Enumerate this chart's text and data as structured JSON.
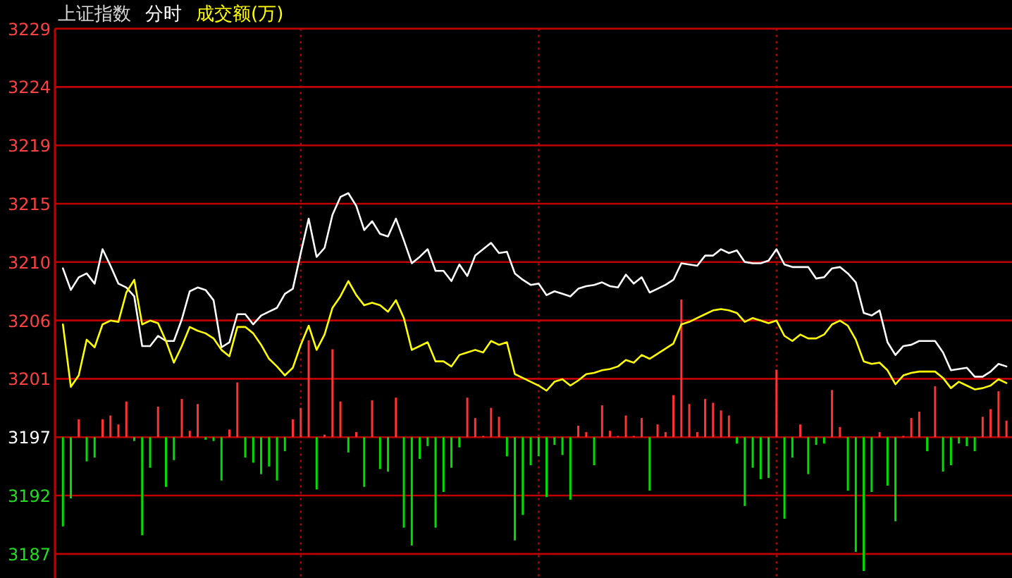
{
  "chart_data": {
    "type": "line",
    "title": "上证指数",
    "subtitle": "分时",
    "grid": true,
    "tick_labels": "y",
    "categories": [
      null,
      null,
      null,
      null,
      null,
      null,
      null,
      null,
      null,
      null,
      null,
      null,
      null,
      null,
      null,
      null,
      null,
      null,
      null,
      null,
      null,
      null,
      null,
      null,
      null,
      null,
      null,
      null,
      null,
      null,
      null,
      null,
      null,
      null,
      null,
      null,
      null,
      null,
      null,
      null,
      null,
      null,
      null,
      null,
      null,
      null,
      null,
      null,
      null,
      null,
      null,
      null,
      null,
      null,
      null,
      null,
      null,
      null,
      null,
      null,
      null,
      null,
      null,
      null,
      null,
      null,
      null,
      null,
      null,
      null,
      null,
      null,
      null,
      null,
      null,
      null,
      null,
      null,
      null,
      null,
      null,
      null,
      null,
      null,
      null,
      null,
      null,
      null,
      null,
      null,
      null,
      null,
      null,
      null,
      null,
      null,
      null,
      null,
      null,
      null,
      null,
      null,
      null,
      null,
      null,
      null,
      null,
      null,
      null,
      null,
      null,
      null,
      null,
      null,
      null,
      null,
      null,
      null,
      null,
      null
    ],
    "ylim": [
      3185.5,
      3228.61
    ],
    "yticks": [
      {
        "value": 3187.39,
        "label": "3187"
      },
      {
        "value": 3191.97,
        "label": "3192"
      },
      {
        "value": 3196.55,
        "label": "3197"
      },
      {
        "value": 3201.13,
        "label": "3201"
      },
      {
        "value": 3205.71,
        "label": "3206"
      },
      {
        "value": 3210.29,
        "label": "3210"
      },
      {
        "value": 3214.87,
        "label": "3215"
      },
      {
        "value": 3219.45,
        "label": "3219"
      },
      {
        "value": 3224.03,
        "label": "3224"
      },
      {
        "value": 3228.61,
        "label": "3229"
      }
    ],
    "series": [
      {
        "type": "bar",
        "values": [
          -7.0,
          -4.8,
          1.4,
          -1.9,
          -1.6,
          1.4,
          1.7,
          1.0,
          2.8,
          -0.3,
          -7.7,
          -2.4,
          2.4,
          -3.9,
          -1.8,
          3.0,
          0.5,
          2.6,
          -0.2,
          -0.3,
          -3.4,
          0.6,
          4.3,
          -1.6,
          -2.0,
          -2.9,
          -2.3,
          -3.4,
          -1.1,
          1.4,
          2.3,
          7.6,
          -4.1,
          0.2,
          6.9,
          2.8,
          -1.2,
          0.4,
          -3.9,
          2.9,
          -2.5,
          -2.7,
          3.1,
          -7.1,
          -8.5,
          -1.7,
          -0.7,
          -7.1,
          -4.3,
          -2.4,
          -0.8,
          3.1,
          1.5,
          0.1,
          2.3,
          1.6,
          -1.5,
          -8.1,
          -6.1,
          -2.2,
          -1.5,
          -4.7,
          -0.6,
          -1.4,
          -4.9,
          0.9,
          0.4,
          -2.2,
          2.5,
          0.5,
          0.1,
          1.7,
          0.1,
          1.5,
          -4.2,
          1.0,
          0.4,
          3.3,
          10.8,
          2.6,
          0.4,
          3.0,
          2.7,
          2.1,
          1.7,
          -0.5,
          -5.4,
          -2.4,
          -3.3,
          -3.2,
          5.3,
          -6.4,
          -1.6,
          1.0,
          -2.9,
          -0.6,
          -0.5,
          3.7,
          0.8,
          -4.2,
          -9.0,
          -10.5,
          -4.3,
          0.4,
          -3.8,
          -6.6,
          0.1,
          1.5,
          2.0,
          -1.1,
          4.0,
          -2.7,
          -2.2,
          -0.5,
          -0.7,
          -1.1,
          1.6,
          2.2,
          3.6,
          1.3
        ],
        "base": [
          3196.55,
          3196.55,
          3196.55,
          3196.55,
          3196.55,
          3196.55,
          3196.55,
          3196.55,
          3196.55,
          3196.55,
          3196.55,
          3196.55,
          3196.55,
          3196.55,
          3196.55,
          3196.55,
          3196.55,
          3196.55,
          3196.55,
          3196.55,
          3196.55,
          3196.55,
          3196.55,
          3196.55,
          3196.55,
          3196.55,
          3196.55,
          3196.55,
          3196.55,
          3196.55,
          3196.55,
          3196.55,
          3196.55,
          3196.55,
          3196.55,
          3196.55,
          3196.55,
          3196.55,
          3196.55,
          3196.55,
          3196.55,
          3196.55,
          3196.55,
          3196.55,
          3196.55,
          3196.55,
          3196.55,
          3196.55,
          3196.55,
          3196.55,
          3196.55,
          3196.55,
          3196.55,
          3196.55,
          3196.55,
          3196.55,
          3196.55,
          3196.55,
          3196.55,
          3196.55,
          3196.55,
          3196.55,
          3196.55,
          3196.55,
          3196.55,
          3196.55,
          3196.55,
          3196.55,
          3196.55,
          3196.55,
          3196.55,
          3196.55,
          3196.55,
          3196.55,
          3196.55,
          3196.55,
          3196.55,
          3196.55,
          3196.55,
          3196.55,
          3196.55,
          3196.55,
          3196.55,
          3196.55,
          3196.55,
          3196.55,
          3196.55,
          3196.55,
          3196.55,
          3196.55,
          3196.55,
          3196.55,
          3196.55,
          3196.55,
          3196.55,
          3196.55,
          3196.55,
          3196.55,
          3196.55,
          3196.55,
          3196.55,
          3196.55,
          3196.55,
          3196.55,
          3196.55,
          3196.55,
          3196.55,
          3196.55,
          3196.55,
          3196.55,
          3196.55,
          3196.55,
          3196.55,
          3196.55,
          3196.55,
          3196.55,
          3196.55,
          3196.55,
          3196.55,
          3196.55
        ],
        "colors": [
          "#00dd00",
          "#00dd00",
          "#ff3333",
          "#00dd00",
          "#00dd00",
          "#ff3333",
          "#ff3333",
          "#ff3333",
          "#ff3333",
          "#00dd00",
          "#00dd00",
          "#00dd00",
          "#ff3333",
          "#00dd00",
          "#00dd00",
          "#ff3333",
          "#ff3333",
          "#ff3333",
          "#00dd00",
          "#00dd00",
          "#00dd00",
          "#ff3333",
          "#ff3333",
          "#00dd00",
          "#00dd00",
          "#00dd00",
          "#00dd00",
          "#00dd00",
          "#00dd00",
          "#ff3333",
          "#ff3333",
          "#ff3333",
          "#00dd00",
          "#ff3333",
          "#ff3333",
          "#ff3333",
          "#00dd00",
          "#ff3333",
          "#00dd00",
          "#ff3333",
          "#00dd00",
          "#00dd00",
          "#ff3333",
          "#00dd00",
          "#00dd00",
          "#00dd00",
          "#00dd00",
          "#00dd00",
          "#00dd00",
          "#00dd00",
          "#00dd00",
          "#ff3333",
          "#ff3333",
          "#ff3333",
          "#ff3333",
          "#ff3333",
          "#00dd00",
          "#00dd00",
          "#00dd00",
          "#00dd00",
          "#00dd00",
          "#00dd00",
          "#00dd00",
          "#00dd00",
          "#00dd00",
          "#ff3333",
          "#ff3333",
          "#00dd00",
          "#ff3333",
          "#ff3333",
          "#ff3333",
          "#ff3333",
          "#ff3333",
          "#ff3333",
          "#00dd00",
          "#ff3333",
          "#ff3333",
          "#ff3333",
          "#ff3333",
          "#ff3333",
          "#ff3333",
          "#ff3333",
          "#ff3333",
          "#ff3333",
          "#ff3333",
          "#00dd00",
          "#00dd00",
          "#00dd00",
          "#00dd00",
          "#00dd00",
          "#ff3333",
          "#00dd00",
          "#00dd00",
          "#ff3333",
          "#00dd00",
          "#00dd00",
          "#00dd00",
          "#ff3333",
          "#ff3333",
          "#00dd00",
          "#00dd00",
          "#00dd00",
          "#00dd00",
          "#ff3333",
          "#00dd00",
          "#00dd00",
          "#ff3333",
          "#ff3333",
          "#ff3333",
          "#00dd00",
          "#ff3333",
          "#00dd00",
          "#00dd00",
          "#00dd00",
          "#00dd00",
          "#00dd00",
          "#ff3333",
          "#ff3333",
          "#ff3333",
          "#ff3333"
        ]
      },
      {
        "color": "#ffffff",
        "values": [
          3209.8,
          3208.1,
          3209.1,
          3209.4,
          3208.6,
          3211.3,
          3210.0,
          3208.6,
          3208.3,
          3207.6,
          3203.7,
          3203.7,
          3204.5,
          3204.1,
          3204.1,
          3205.8,
          3208.0,
          3208.3,
          3208.1,
          3207.3,
          3203.6,
          3204.0,
          3206.2,
          3206.2,
          3205.4,
          3206.1,
          3206.4,
          3206.7,
          3207.8,
          3208.2,
          3211.0,
          3213.7,
          3210.7,
          3211.4,
          3214.0,
          3215.4,
          3215.7,
          3214.7,
          3212.8,
          3213.5,
          3212.5,
          3212.3,
          3213.7,
          3212.0,
          3210.2,
          3210.7,
          3211.3,
          3209.6,
          3209.6,
          3208.8,
          3210.1,
          3209.2,
          3210.8,
          3211.3,
          3211.8,
          3211.0,
          3211.1,
          3209.4,
          3208.9,
          3208.5,
          3208.6,
          3207.7,
          3208.0,
          3207.8,
          3207.6,
          3208.2,
          3208.4,
          3208.5,
          3208.7,
          3208.4,
          3208.3,
          3209.3,
          3208.6,
          3209.1,
          3207.9,
          3208.2,
          3208.5,
          3208.9,
          3210.2,
          3210.1,
          3210.0,
          3210.8,
          3210.8,
          3211.3,
          3211.0,
          3211.2,
          3210.3,
          3210.2,
          3210.2,
          3210.4,
          3211.3,
          3210.1,
          3209.9,
          3209.9,
          3209.9,
          3209.0,
          3209.1,
          3209.8,
          3209.9,
          3209.4,
          3208.7,
          3206.3,
          3206.1,
          3206.5,
          3204.0,
          3203.0,
          3203.7,
          3203.8,
          3204.1,
          3204.1,
          3204.1,
          3203.2,
          3201.8,
          3201.9,
          3202.0,
          3201.3,
          3201.3,
          3201.7,
          3202.3,
          3202.1
        ]
      },
      {
        "name": "成交额(万)",
        "color": "#ffff00",
        "values": [
          3205.4,
          3200.5,
          3201.4,
          3204.2,
          3203.6,
          3205.4,
          3205.7,
          3205.6,
          3207.9,
          3208.9,
          3205.4,
          3205.7,
          3205.5,
          3204.1,
          3202.4,
          3203.7,
          3205.2,
          3204.9,
          3204.7,
          3204.3,
          3203.4,
          3202.9,
          3205.2,
          3205.2,
          3204.7,
          3203.8,
          3202.7,
          3202.1,
          3201.4,
          3202.0,
          3203.8,
          3205.3,
          3203.4,
          3204.6,
          3206.7,
          3207.6,
          3208.8,
          3207.7,
          3206.9,
          3207.1,
          3206.9,
          3206.4,
          3207.3,
          3205.9,
          3203.4,
          3203.7,
          3204.0,
          3202.5,
          3202.5,
          3202.1,
          3203.0,
          3203.2,
          3203.4,
          3203.2,
          3204.1,
          3203.8,
          3204.0,
          3201.5,
          3201.2,
          3200.9,
          3200.6,
          3200.2,
          3200.9,
          3201.1,
          3200.6,
          3201.0,
          3201.5,
          3201.6,
          3201.8,
          3201.9,
          3202.1,
          3202.6,
          3202.4,
          3203.0,
          3202.7,
          3203.1,
          3203.5,
          3203.9,
          3205.4,
          3205.6,
          3205.9,
          3206.2,
          3206.5,
          3206.6,
          3206.5,
          3206.3,
          3205.6,
          3205.9,
          3205.7,
          3205.5,
          3205.7,
          3204.5,
          3204.1,
          3204.6,
          3204.3,
          3204.3,
          3204.6,
          3205.4,
          3205.7,
          3205.3,
          3204.2,
          3202.5,
          3202.3,
          3202.4,
          3201.8,
          3200.7,
          3201.4,
          3201.6,
          3201.7,
          3201.7,
          3201.7,
          3201.2,
          3200.4,
          3200.9,
          3200.6,
          3200.3,
          3200.4,
          3200.6,
          3201.1,
          3200.8
        ]
      }
    ]
  }
}
